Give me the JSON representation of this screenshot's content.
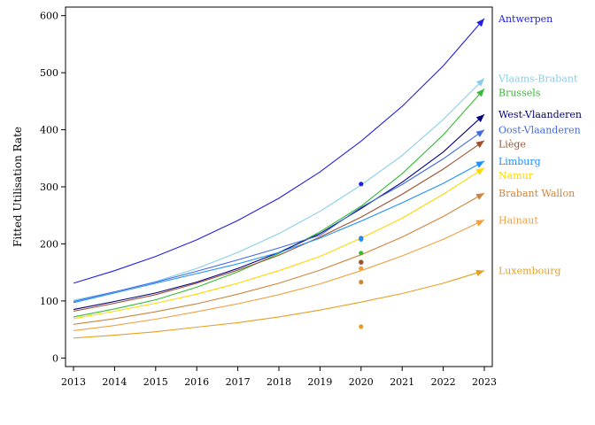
{
  "chart_data": {
    "type": "line",
    "title": "",
    "xlabel": "",
    "ylabel": "Fitted Utilisation Rate",
    "x": [
      2013,
      2014,
      2015,
      2016,
      2017,
      2018,
      2019,
      2020,
      2021,
      2022,
      2023
    ],
    "x_ticks": [
      2013,
      2014,
      2015,
      2016,
      2017,
      2018,
      2019,
      2020,
      2021,
      2022,
      2023
    ],
    "y_ticks": [
      0,
      100,
      200,
      300,
      400,
      500,
      600
    ],
    "xlim": [
      2013,
      2023
    ],
    "ylim": [
      -15,
      615
    ],
    "grid": false,
    "legend": "labels at right end of each line",
    "series": [
      {
        "name": "Antwerpen",
        "color": "#2222dd",
        "values": [
          131,
          153,
          178,
          207,
          241,
          280,
          326,
          380,
          441,
          512,
          595
        ],
        "observed_2020": 305
      },
      {
        "name": "Vlaams-Brabant",
        "color": "#87ceeb",
        "values": [
          101,
          116,
          134,
          157,
          185,
          218,
          257,
          303,
          355,
          418,
          490
        ],
        "observed_2020": 209
      },
      {
        "name": "Brussels",
        "color": "#33bb33",
        "values": [
          72,
          86,
          102,
          124,
          151,
          183,
          221,
          266,
          323,
          391,
          472
        ],
        "observed_2020": 184
      },
      {
        "name": "West-Vlaanderen",
        "color": "#000080",
        "values": [
          85,
          99,
          114,
          133,
          157,
          185,
          218,
          262,
          308,
          361,
          427
        ],
        "observed_2020": 168
      },
      {
        "name": "Oost-Vlaanderen",
        "color": "#4169e1",
        "values": [
          99,
          116,
          133,
          152,
          172,
          193,
          215,
          264,
          304,
          349,
          400
        ],
        "observed_2020": 210
      },
      {
        "name": "Liège",
        "color": "#a0522d",
        "values": [
          82,
          96,
          111,
          131,
          154,
          180,
          212,
          247,
          287,
          331,
          381
        ],
        "observed_2020": 168
      },
      {
        "name": "Limburg",
        "color": "#1e90ff",
        "values": [
          97,
          114,
          131,
          148,
          165,
          185,
          210,
          240,
          272,
          306,
          345
        ],
        "observed_2020": 208
      },
      {
        "name": "Namur",
        "color": "#ffd700",
        "values": [
          69,
          82,
          96,
          112,
          131,
          153,
          178,
          210,
          245,
          287,
          333
        ],
        "observed_2020": 157
      },
      {
        "name": "Brabant Wallon",
        "color": "#cd853f",
        "values": [
          59,
          69,
          81,
          95,
          112,
          131,
          154,
          181,
          212,
          248,
          289
        ],
        "observed_2020": 133
      },
      {
        "name": "Hainaut",
        "color": "#f0a040",
        "values": [
          48,
          57,
          68,
          81,
          95,
          111,
          130,
          153,
          179,
          208,
          242
        ],
        "observed_2020": 157
      },
      {
        "name": "Luxembourg",
        "color": "#e6a020",
        "values": [
          35,
          40,
          46,
          54,
          62,
          72,
          84,
          98,
          113,
          131,
          153
        ],
        "observed_2020": 55
      }
    ]
  }
}
